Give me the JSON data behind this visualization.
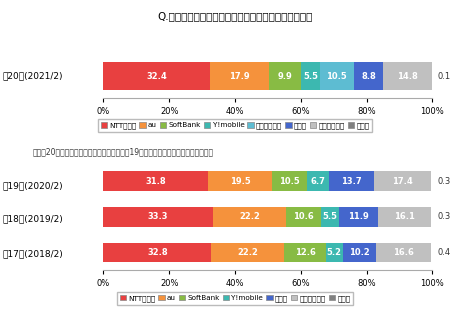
{
  "title": "Q.今後利用したいと思う携帯電話会社はどこですか？",
  "top_rows": [
    {
      "label": "第20回(2021/2)",
      "values": [
        32.4,
        17.9,
        9.9,
        5.5,
        10.5,
        8.8,
        14.8,
        0.1
      ]
    }
  ],
  "bottom_rows": [
    {
      "label": "第19回(2020/2)",
      "values": [
        31.8,
        19.5,
        10.5,
        6.7,
        13.7,
        17.4,
        0.3
      ]
    },
    {
      "label": "第18回(2019/2)",
      "values": [
        33.3,
        22.2,
        10.6,
        5.5,
        11.9,
        16.1,
        0.3
      ]
    },
    {
      "label": "第17回(2018/2)",
      "values": [
        32.8,
        22.2,
        12.6,
        5.2,
        10.2,
        16.6,
        0.4
      ]
    }
  ],
  "colors_top": [
    "#e84040",
    "#f5923c",
    "#88bb44",
    "#3cb8b0",
    "#5dbcd2",
    "#4466cc",
    "#c0c0c0",
    "#808080"
  ],
  "colors_bottom": [
    "#e84040",
    "#f5923c",
    "#88bb44",
    "#3cb8b0",
    "#4466cc",
    "#c0c0c0",
    "#808080"
  ],
  "legend_top": [
    "NTTドコモ",
    "au",
    "SoftBank",
    "Y!mobile",
    "楽天モバイル",
    "その他",
    "いずれもない",
    "無回答"
  ],
  "legend_bottom": [
    "NTTドコモ",
    "au",
    "SoftBank",
    "Y!mobile",
    "その他",
    "いずれもない",
    "無回答"
  ],
  "note": "注）第20回から「楽天モバイル」を追加。第19回以前は参考値として下記に掲載。",
  "bg_color": "#ffffff",
  "plot_bg": "#ffffff",
  "border_color": "#aaaaaa"
}
